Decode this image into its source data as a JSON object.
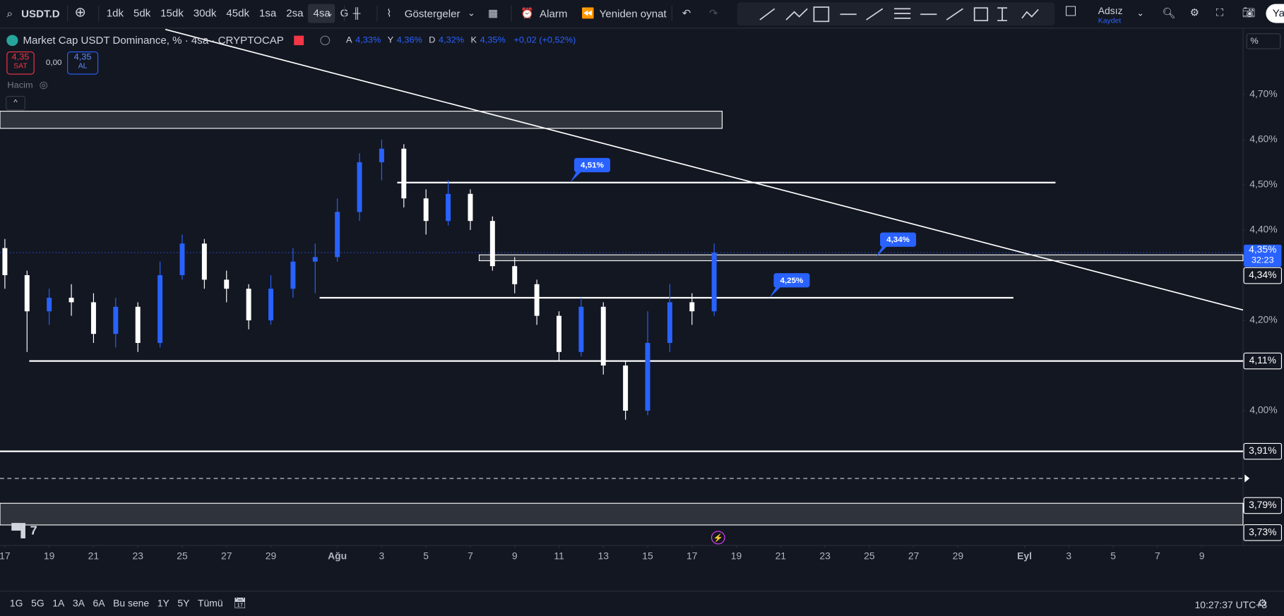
{
  "toolbar": {
    "symbol": "USDT.D",
    "intervals": [
      "1dk",
      "5dk",
      "15dk",
      "30dk",
      "45dk",
      "1sa",
      "2sa",
      "4sa",
      "G"
    ],
    "active_interval": 7,
    "indicators": "Göstergeler",
    "alert": "Alarm",
    "replay": "Yeniden oynat",
    "layout_name": "Adsız",
    "save": "Kaydet",
    "user": "Ya"
  },
  "legend": {
    "title": "Market Cap USDT Dominance, % · 4sa · CRYPTOCAP",
    "ohlc": [
      {
        "key": "A",
        "value": "4,33%"
      },
      {
        "key": "Y",
        "value": "4,36%"
      },
      {
        "key": "D",
        "value": "4,32%"
      },
      {
        "key": "K",
        "value": "4,35%"
      }
    ],
    "change": "+0,02 (+0,52%)"
  },
  "trade": {
    "sell_price": "4,35",
    "sell": "SAT",
    "spread": "0,00",
    "buy_price": "4,35",
    "buy": "AL"
  },
  "volume_label": "Hacim",
  "scale_mode": "%",
  "chart": {
    "ylim": [
      3.705,
      4.846
    ],
    "xlim": [
      -0.22,
      55.86
    ],
    "yticks": [
      {
        "value": 4.7,
        "label": "4,70%"
      },
      {
        "value": 4.6,
        "label": "4,60%"
      },
      {
        "value": 4.5,
        "label": "4,50%"
      },
      {
        "value": 4.4,
        "label": "4,40%"
      },
      {
        "value": 4.2,
        "label": "4,20%"
      },
      {
        "value": 4.0,
        "label": "4,00%"
      }
    ],
    "xticks": [
      {
        "value": 0,
        "label": "17"
      },
      {
        "value": 2,
        "label": "19"
      },
      {
        "value": 4,
        "label": "21"
      },
      {
        "value": 6,
        "label": "23"
      },
      {
        "value": 8,
        "label": "25"
      },
      {
        "value": 10,
        "label": "27"
      },
      {
        "value": 12,
        "label": "29"
      },
      {
        "value": 15,
        "label": "Ağu"
      },
      {
        "value": 17,
        "label": "3"
      },
      {
        "value": 19,
        "label": "5"
      },
      {
        "value": 21,
        "label": "7"
      },
      {
        "value": 23,
        "label": "9"
      },
      {
        "value": 25,
        "label": "11"
      },
      {
        "value": 27,
        "label": "13"
      },
      {
        "value": 29,
        "label": "15"
      },
      {
        "value": 31,
        "label": "17"
      },
      {
        "value": 33,
        "label": "19"
      },
      {
        "value": 35,
        "label": "21"
      },
      {
        "value": 37,
        "label": "23"
      },
      {
        "value": 39,
        "label": "25"
      },
      {
        "value": 41,
        "label": "27"
      },
      {
        "value": 43,
        "label": "29"
      },
      {
        "value": 46,
        "label": "Eyl"
      },
      {
        "value": 48,
        "label": "3"
      },
      {
        "value": 50,
        "label": "5"
      },
      {
        "value": 52,
        "label": "7"
      },
      {
        "value": 54,
        "label": "9"
      }
    ],
    "up_color": "#2962ff",
    "down_color": "#ffffff",
    "candles": [
      {
        "day": 0,
        "o": 4.36,
        "h": 4.38,
        "l": 4.27,
        "c": 4.3
      },
      {
        "day": 1,
        "o": 4.3,
        "h": 4.31,
        "l": 4.13,
        "c": 4.22
      },
      {
        "day": 2,
        "o": 4.22,
        "h": 4.27,
        "l": 4.19,
        "c": 4.25
      },
      {
        "day": 3,
        "o": 4.25,
        "h": 4.28,
        "l": 4.21,
        "c": 4.24
      },
      {
        "day": 4,
        "o": 4.24,
        "h": 4.26,
        "l": 4.15,
        "c": 4.17
      },
      {
        "day": 5,
        "o": 4.17,
        "h": 4.25,
        "l": 4.14,
        "c": 4.23
      },
      {
        "day": 6,
        "o": 4.23,
        "h": 4.24,
        "l": 4.13,
        "c": 4.15
      },
      {
        "day": 7,
        "o": 4.15,
        "h": 4.33,
        "l": 4.14,
        "c": 4.3
      },
      {
        "day": 8,
        "o": 4.3,
        "h": 4.39,
        "l": 4.29,
        "c": 4.37
      },
      {
        "day": 9,
        "o": 4.37,
        "h": 4.38,
        "l": 4.27,
        "c": 4.29
      },
      {
        "day": 10,
        "o": 4.29,
        "h": 4.31,
        "l": 4.24,
        "c": 4.27
      },
      {
        "day": 11,
        "o": 4.27,
        "h": 4.28,
        "l": 4.18,
        "c": 4.2
      },
      {
        "day": 12,
        "o": 4.2,
        "h": 4.3,
        "l": 4.19,
        "c": 4.27
      },
      {
        "day": 13,
        "o": 4.27,
        "h": 4.36,
        "l": 4.25,
        "c": 4.33
      },
      {
        "day": 14,
        "o": 4.33,
        "h": 4.37,
        "l": 4.26,
        "c": 4.34
      },
      {
        "day": 15,
        "o": 4.34,
        "h": 4.47,
        "l": 4.33,
        "c": 4.44
      },
      {
        "day": 16,
        "o": 4.44,
        "h": 4.57,
        "l": 4.42,
        "c": 4.55
      },
      {
        "day": 17,
        "o": 4.55,
        "h": 4.6,
        "l": 4.51,
        "c": 4.58
      },
      {
        "day": 18,
        "o": 4.58,
        "h": 4.59,
        "l": 4.45,
        "c": 4.47
      },
      {
        "day": 19,
        "o": 4.47,
        "h": 4.49,
        "l": 4.39,
        "c": 4.42
      },
      {
        "day": 20,
        "o": 4.42,
        "h": 4.51,
        "l": 4.41,
        "c": 4.48
      },
      {
        "day": 21,
        "o": 4.48,
        "h": 4.49,
        "l": 4.4,
        "c": 4.42
      },
      {
        "day": 22,
        "o": 4.42,
        "h": 4.43,
        "l": 4.31,
        "c": 4.32
      },
      {
        "day": 23,
        "o": 4.32,
        "h": 4.34,
        "l": 4.26,
        "c": 4.28
      },
      {
        "day": 24,
        "o": 4.28,
        "h": 4.29,
        "l": 4.19,
        "c": 4.21
      },
      {
        "day": 25,
        "o": 4.21,
        "h": 4.22,
        "l": 4.11,
        "c": 4.13
      },
      {
        "day": 26,
        "o": 4.13,
        "h": 4.25,
        "l": 4.12,
        "c": 4.23
      },
      {
        "day": 27,
        "o": 4.23,
        "h": 4.24,
        "l": 4.08,
        "c": 4.1
      },
      {
        "day": 28,
        "o": 4.1,
        "h": 4.11,
        "l": 3.98,
        "c": 4.0
      },
      {
        "day": 29,
        "o": 4.0,
        "h": 4.22,
        "l": 3.99,
        "c": 4.15
      },
      {
        "day": 30,
        "o": 4.15,
        "h": 4.28,
        "l": 4.13,
        "c": 4.24
      },
      {
        "day": 31,
        "o": 4.24,
        "h": 4.26,
        "l": 4.19,
        "c": 4.22
      },
      {
        "day": 32,
        "o": 4.22,
        "h": 4.37,
        "l": 4.21,
        "c": 4.35
      }
    ],
    "trendline": {
      "start": {
        "day": 7.24,
        "value": 4.844
      },
      "end": {
        "day": 55.86,
        "value": 4.223
      }
    },
    "levels": [
      {
        "value": 4.505,
        "start_day": 17.7,
        "end_day": 47.4
      },
      {
        "value": 4.25,
        "start_day": 14.2,
        "end_day": 45.5
      },
      {
        "value": 4.11,
        "start_day": 1.1
      },
      {
        "value": 3.91,
        "start_day": -0.22
      }
    ],
    "boxes": [
      {
        "top": 4.663,
        "bottom": 4.625,
        "start_day": -0.22,
        "end_day": 32.36
      },
      {
        "top": 4.345,
        "bottom": 4.332,
        "start_day": 21.4
      },
      {
        "top": 3.795,
        "bottom": 3.747,
        "start_day": -0.22
      }
    ],
    "dashed_level": 3.85,
    "callouts": [
      {
        "label": "4,51%",
        "value": 4.505,
        "day": 25.5
      },
      {
        "label": "4,34%",
        "value": 4.34,
        "day": 39.3
      },
      {
        "label": "4,25%",
        "value": 4.25,
        "day": 34.5
      }
    ],
    "last_price": {
      "value": 4.35,
      "label": "4,35%",
      "countdown": "32:23"
    },
    "price_badges": [
      {
        "label": "4,34%",
        "value": 4.34
      },
      {
        "label": "4,11%",
        "value": 4.11
      },
      {
        "label": "3,91%",
        "value": 3.91
      },
      {
        "label": "3,79%",
        "value": 3.79
      },
      {
        "label": "3,73%",
        "value": 3.73
      }
    ]
  },
  "range_bar": {
    "ranges": [
      "1G",
      "5G",
      "1A",
      "3A",
      "6A",
      "Bu sene",
      "1Y",
      "5Y",
      "Tümü"
    ],
    "time": "10:27:37 UTC+3"
  }
}
